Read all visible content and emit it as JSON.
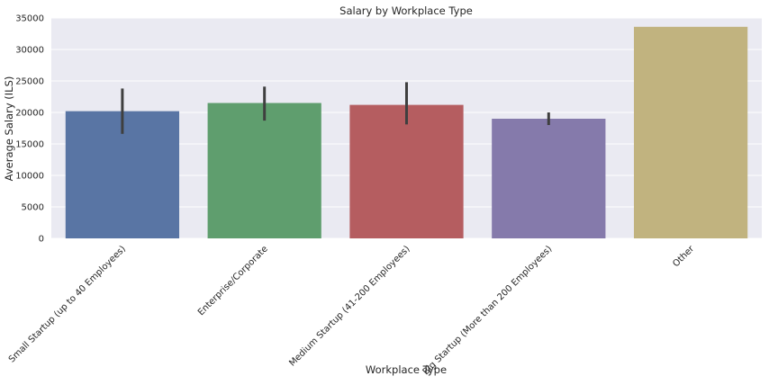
{
  "chart_data": {
    "type": "bar",
    "title": "Salary by Workplace Type",
    "xlabel": "Workplace Type",
    "ylabel": "Average Salary (ILS)",
    "ylim": [
      0,
      35000
    ],
    "yticks": [
      0,
      5000,
      10000,
      15000,
      20000,
      25000,
      30000,
      35000
    ],
    "grid": true,
    "categories": [
      "Small Startup (up to 40 Employees)",
      "Enterprise/Corporate",
      "Medium Startup (41-200 Employees)",
      "Big Startup (More than 200 Employees)",
      "Other"
    ],
    "values": [
      20200,
      21500,
      21200,
      19000,
      33600
    ],
    "error_bars": [
      {
        "low": 16600,
        "high": 23800
      },
      {
        "low": 18700,
        "high": 24100
      },
      {
        "low": 18100,
        "high": 24800
      },
      {
        "low": 18000,
        "high": 20000
      },
      null
    ],
    "colors": [
      "#5975a4",
      "#5f9e6e",
      "#b55d60",
      "#857aab",
      "#c1b37f"
    ],
    "background": "#eaeaf2",
    "error_color": "#3f3f3f"
  }
}
